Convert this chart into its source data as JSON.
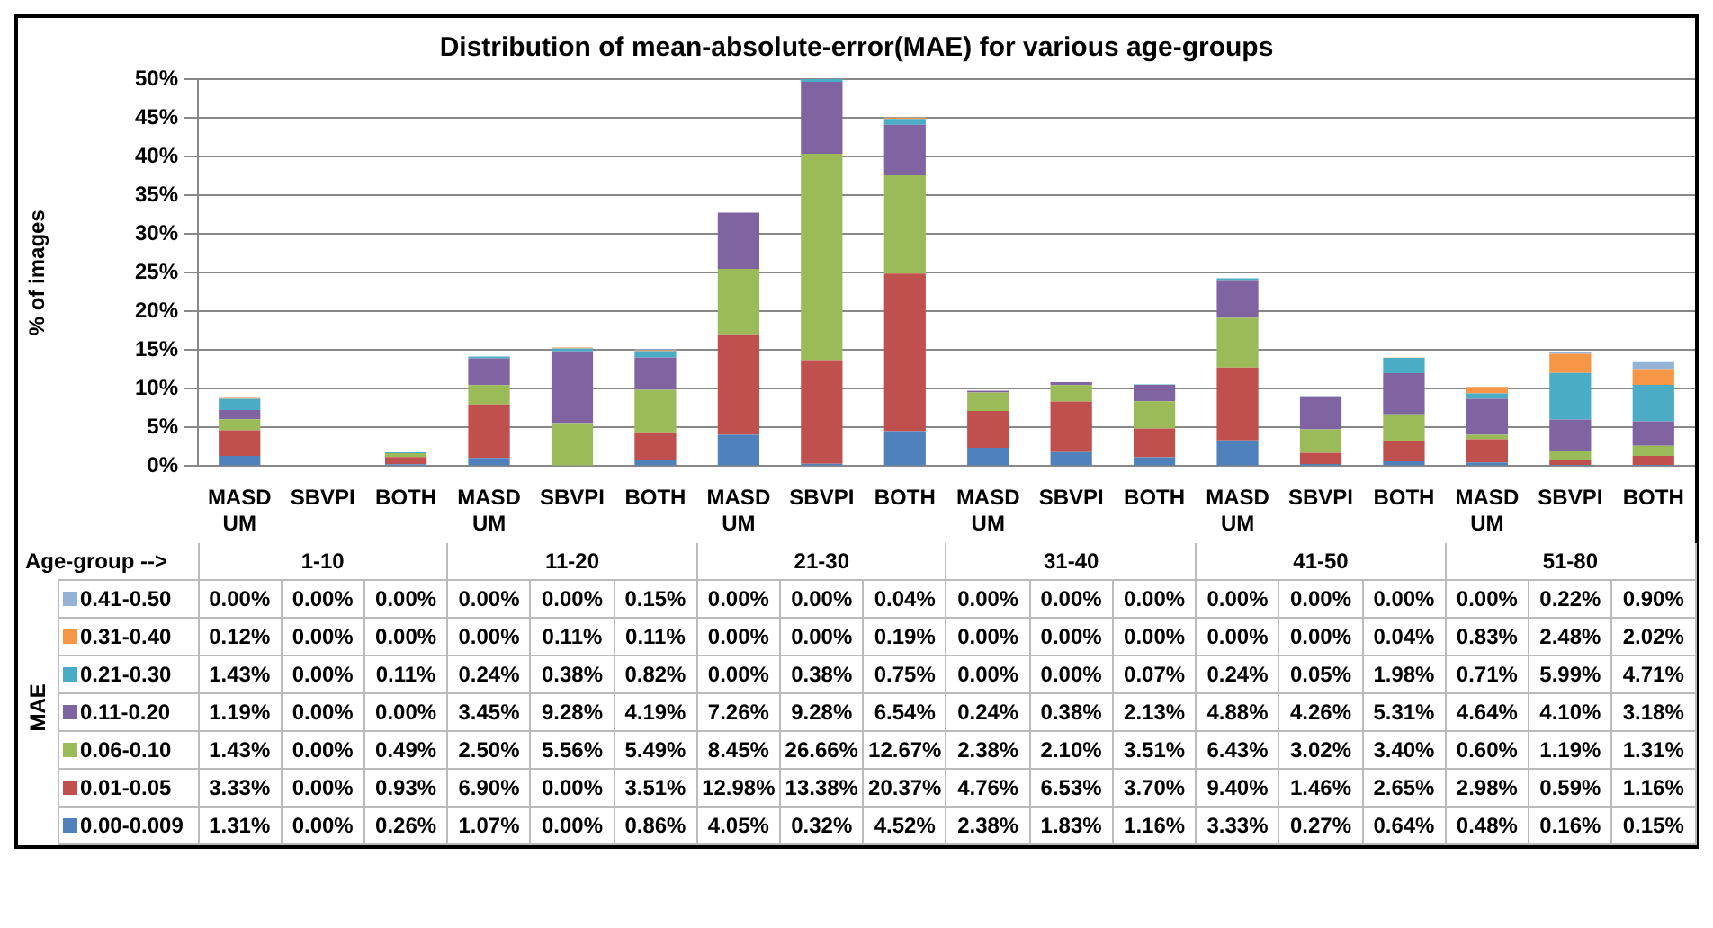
{
  "chart_data": {
    "type": "bar",
    "title": "Distribution of mean-absolute-error(MAE) for various age-groups",
    "ylabel": "% of images",
    "legend_title": "MAE",
    "categories": [
      "MASD UM",
      "SBVPI",
      "BOTH",
      "MASD UM",
      "SBVPI",
      "BOTH",
      "MASD UM",
      "SBVPI",
      "BOTH",
      "MASD UM",
      "SBVPI",
      "BOTH",
      "MASD UM",
      "SBVPI",
      "BOTH",
      "MASD UM",
      "SBVPI",
      "BOTH"
    ],
    "annotations": [
      "Age-group -->",
      "1-10",
      "11-20",
      "21-30",
      "31-40",
      "41-50",
      "51-80"
    ],
    "stacked": true,
    "legend": "bottom left",
    "grid": "y",
    "ylim": [
      0,
      50
    ],
    "yticks": [
      {
        "value": 0,
        "label": "0%"
      },
      {
        "value": 5,
        "label": "5%"
      },
      {
        "value": 10,
        "label": "10%"
      },
      {
        "value": 15,
        "label": "15%"
      },
      {
        "value": 20,
        "label": "20%"
      },
      {
        "value": 25,
        "label": "25%"
      },
      {
        "value": 30,
        "label": "30%"
      },
      {
        "value": 35,
        "label": "35%"
      },
      {
        "value": 40,
        "label": "40%"
      },
      {
        "value": 45,
        "label": "45%"
      },
      {
        "value": 50,
        "label": "50%"
      }
    ],
    "series": [
      {
        "name": "0.00-0.009",
        "color": "#4f81bd",
        "values": [
          1.31,
          0,
          0.26,
          1.07,
          0,
          0.86,
          4.05,
          0.32,
          4.52,
          2.38,
          1.83,
          1.16,
          3.33,
          0.27,
          0.64,
          0.48,
          0.16,
          0.15
        ],
        "value_labels": [
          "1.31%",
          "0.00%",
          "0.26%",
          "1.07%",
          "0.00%",
          "0.86%",
          "4.05%",
          "0.32%",
          "4.52%",
          "2.38%",
          "1.83%",
          "1.16%",
          "3.33%",
          "0.27%",
          "0.64%",
          "0.48%",
          "0.16%",
          "0.15%"
        ]
      },
      {
        "name": "0.01-0.05",
        "color": "#c0504d",
        "values": [
          3.33,
          0,
          0.93,
          6.9,
          0,
          3.51,
          12.98,
          13.38,
          20.37,
          4.76,
          6.53,
          3.7,
          9.4,
          1.46,
          2.65,
          2.98,
          0.59,
          1.16
        ],
        "value_labels": [
          "3.33%",
          "0.00%",
          "0.93%",
          "6.90%",
          "0.00%",
          "3.51%",
          "12.98%",
          "13.38%",
          "20.37%",
          "4.76%",
          "6.53%",
          "3.70%",
          "9.40%",
          "1.46%",
          "2.65%",
          "2.98%",
          "0.59%",
          "1.16%"
        ]
      },
      {
        "name": "0.06-0.10",
        "color": "#9bbb59",
        "values": [
          1.43,
          0,
          0.49,
          2.5,
          5.56,
          5.49,
          8.45,
          26.66,
          12.67,
          2.38,
          2.1,
          3.51,
          6.43,
          3.02,
          3.4,
          0.6,
          1.19,
          1.31
        ],
        "value_labels": [
          "1.43%",
          "0.00%",
          "0.49%",
          "2.50%",
          "5.56%",
          "5.49%",
          "8.45%",
          "26.66%",
          "12.67%",
          "2.38%",
          "2.10%",
          "3.51%",
          "6.43%",
          "3.02%",
          "3.40%",
          "0.60%",
          "1.19%",
          "1.31%"
        ]
      },
      {
        "name": "0.11-0.20",
        "color": "#8064a2",
        "values": [
          1.19,
          0,
          0,
          3.45,
          9.28,
          4.19,
          7.26,
          9.28,
          6.54,
          0.24,
          0.38,
          2.13,
          4.88,
          4.26,
          5.31,
          4.64,
          4.1,
          3.18
        ],
        "value_labels": [
          "1.19%",
          "0.00%",
          "0.00%",
          "3.45%",
          "9.28%",
          "4.19%",
          "7.26%",
          "9.28%",
          "6.54%",
          "0.24%",
          "0.38%",
          "2.13%",
          "4.88%",
          "4.26%",
          "5.31%",
          "4.64%",
          "4.10%",
          "3.18%"
        ]
      },
      {
        "name": "0.21-0.30",
        "color": "#4bacc6",
        "values": [
          1.43,
          0,
          0.11,
          0.24,
          0.38,
          0.82,
          0,
          0.38,
          0.75,
          0,
          0,
          0.07,
          0.24,
          0.05,
          1.98,
          0.71,
          5.99,
          4.71
        ],
        "value_labels": [
          "1.43%",
          "0.00%",
          "0.11%",
          "0.24%",
          "0.38%",
          "0.82%",
          "0.00%",
          "0.38%",
          "0.75%",
          "0.00%",
          "0.00%",
          "0.07%",
          "0.24%",
          "0.05%",
          "1.98%",
          "0.71%",
          "5.99%",
          "4.71%"
        ]
      },
      {
        "name": "0.31-0.40",
        "color": "#f79646",
        "values": [
          0.12,
          0,
          0,
          0,
          0.11,
          0.11,
          0,
          0,
          0.19,
          0,
          0,
          0,
          0,
          0,
          0.04,
          0.83,
          2.48,
          2.02
        ],
        "value_labels": [
          "0.12%",
          "0.00%",
          "0.00%",
          "0.00%",
          "0.11%",
          "0.11%",
          "0.00%",
          "0.00%",
          "0.19%",
          "0.00%",
          "0.00%",
          "0.00%",
          "0.00%",
          "0.00%",
          "0.04%",
          "0.83%",
          "2.48%",
          "2.02%"
        ]
      },
      {
        "name": "0.41-0.50",
        "color": "#95b3d7",
        "values": [
          0,
          0,
          0,
          0,
          0,
          0.15,
          0,
          0,
          0.04,
          0,
          0,
          0,
          0,
          0,
          0,
          0,
          0.22,
          0.9
        ],
        "value_labels": [
          "0.00%",
          "0.00%",
          "0.00%",
          "0.00%",
          "0.00%",
          "0.15%",
          "0.00%",
          "0.00%",
          "0.04%",
          "0.00%",
          "0.00%",
          "0.00%",
          "0.00%",
          "0.00%",
          "0.00%",
          "0.00%",
          "0.22%",
          "0.90%"
        ]
      }
    ]
  }
}
